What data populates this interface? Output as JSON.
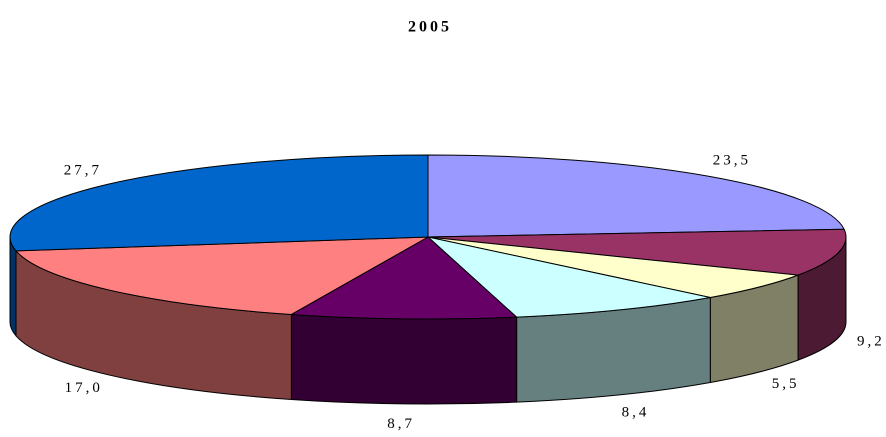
{
  "chart_data": {
    "type": "pie3d",
    "title": "2005",
    "values": [
      23.5,
      9.2,
      5.5,
      8.4,
      8.7,
      17.0,
      27.7
    ],
    "value_labels": [
      "23,5",
      "9,2",
      "5,5",
      "8,4",
      "8,7",
      "17,0",
      "27,7"
    ],
    "colors": [
      "#9999ff",
      "#993366",
      "#ffffcc",
      "#ccffff",
      "#660066",
      "#ff8080",
      "#0066cc"
    ]
  }
}
